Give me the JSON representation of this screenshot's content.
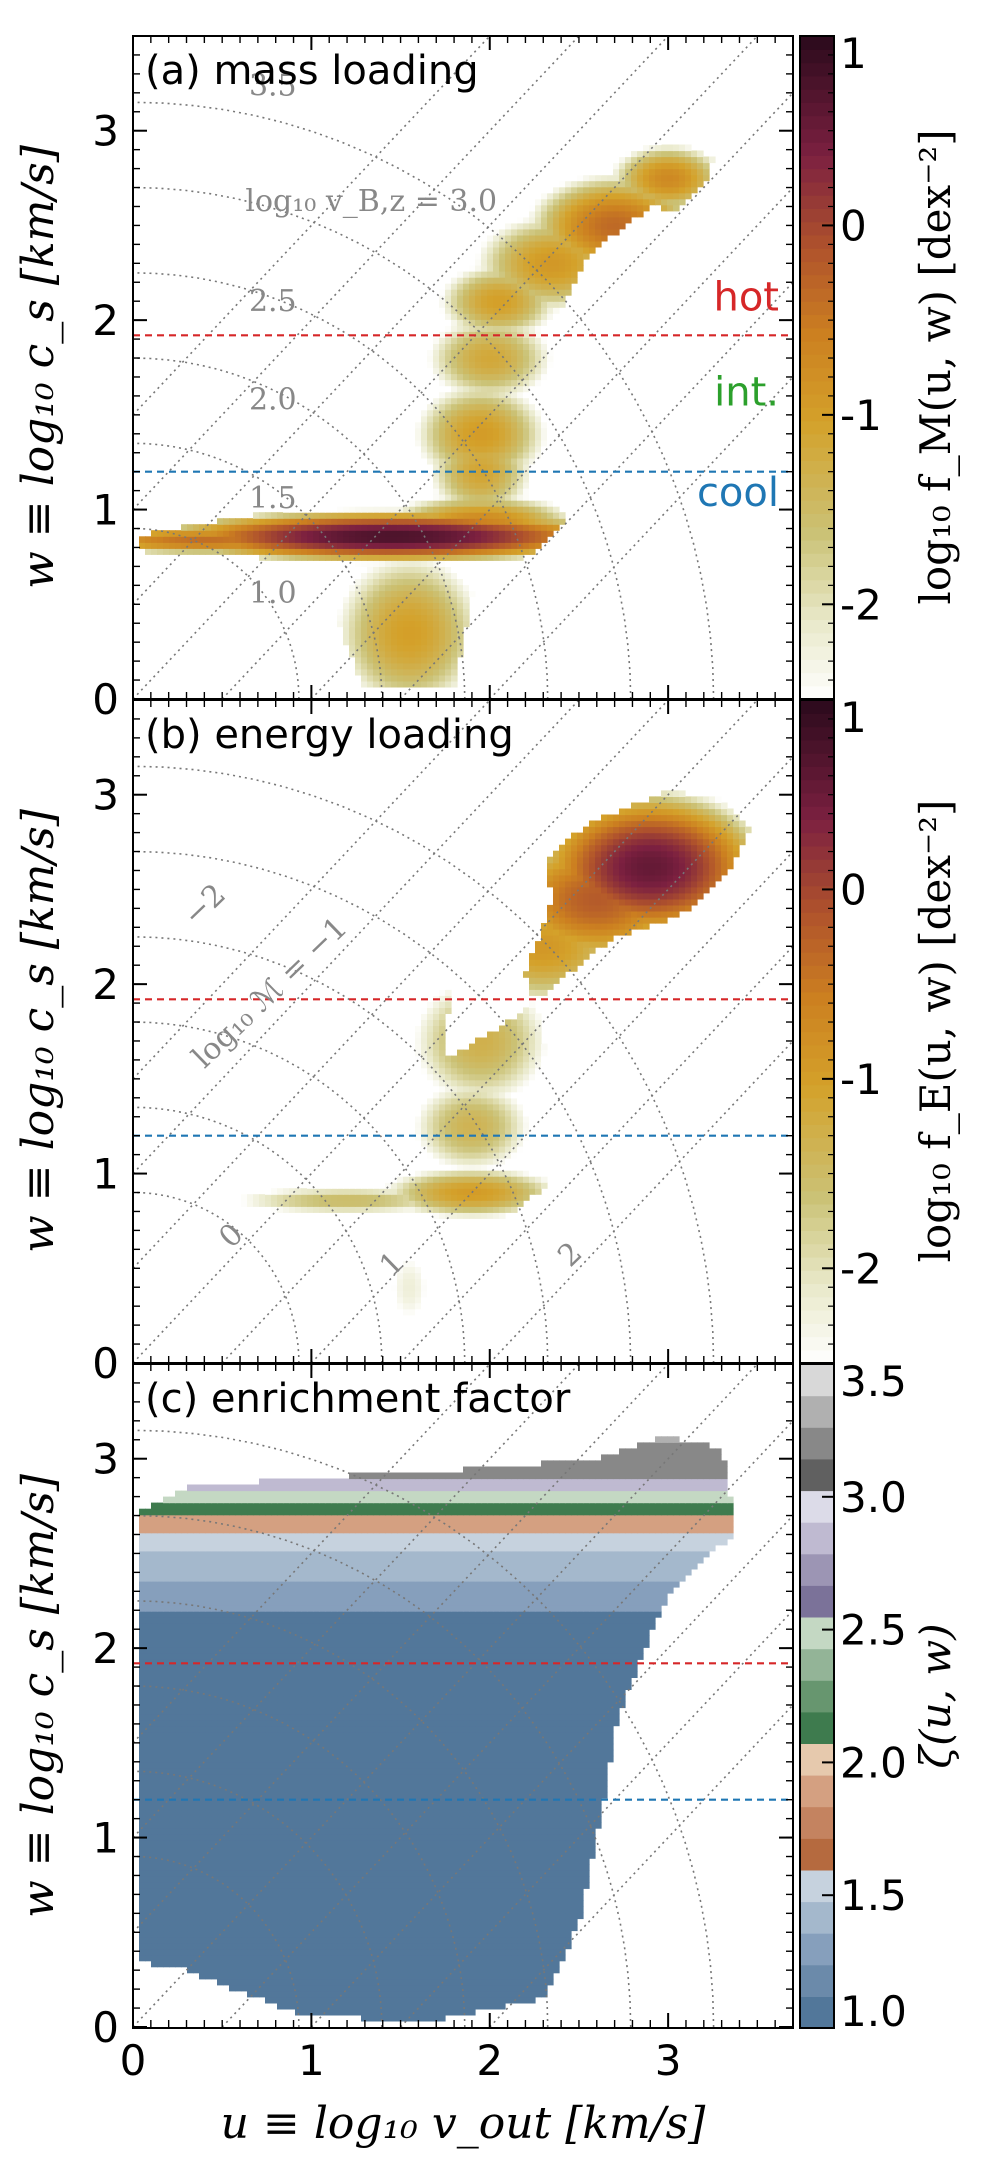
{
  "chart_data": [
    {
      "type": "heatmap",
      "panel_label": "(a) mass loading",
      "xlabel": "u ≡ log₁₀ v_out [km/s]",
      "ylabel": "w ≡ log₁₀ c_s [km/s]",
      "xlim": [
        0,
        3.7
      ],
      "ylim": [
        0,
        3.5
      ],
      "xticks": [
        "0",
        "1",
        "2",
        "3"
      ],
      "yticks": [
        "0",
        "1",
        "2",
        "3"
      ],
      "colorbar_label": "log₁₀ f_M(u, w) [dex⁻²]",
      "colorbar_range": [
        -2.5,
        1
      ],
      "colorbar_ticks": [
        "1",
        "0",
        "-1",
        "-2"
      ],
      "hlines": [
        {
          "name": "hot",
          "value": 1.92,
          "color": "#d62728"
        },
        {
          "name": "cool",
          "value": 1.2,
          "color": "#1f77b4"
        }
      ],
      "region_labels": [
        {
          "text": "hot",
          "color": "#d62728",
          "w": 2.05
        },
        {
          "text": "int.",
          "color": "#2ca02c",
          "w": 1.55
        },
        {
          "text": "cool",
          "color": "#1f77b4",
          "w": 1.02
        }
      ],
      "contour_labels": [
        "3.5",
        "log₁₀ v_B,z = 3.0",
        "2.5",
        "2.0",
        "1.5",
        "1.0"
      ],
      "contour_levels": [
        1.0,
        1.5,
        2.0,
        2.5,
        3.0,
        3.5
      ],
      "blobs": [
        {
          "u": 1.45,
          "w": 0.86,
          "su": 0.6,
          "sw": 0.06,
          "v": 0.75
        },
        {
          "u": 0.4,
          "w": 0.84,
          "su": 0.45,
          "sw": 0.04,
          "v": -0.4
        },
        {
          "u": 1.95,
          "w": 0.92,
          "su": 0.3,
          "sw": 0.09,
          "v": -0.6
        },
        {
          "u": 1.55,
          "w": 0.35,
          "su": 0.25,
          "sw": 0.25,
          "v": -1.0
        },
        {
          "u": 1.95,
          "w": 1.2,
          "su": 0.18,
          "sw": 0.15,
          "v": -1.1
        },
        {
          "u": 1.95,
          "w": 1.4,
          "su": 0.22,
          "sw": 0.16,
          "v": -0.95
        },
        {
          "u": 2.0,
          "w": 1.8,
          "su": 0.22,
          "sw": 0.14,
          "v": -1.15
        },
        {
          "u": 2.05,
          "w": 2.1,
          "su": 0.2,
          "sw": 0.12,
          "v": -1.0
        },
        {
          "u": 2.35,
          "w": 2.3,
          "su": 0.25,
          "sw": 0.15,
          "v": -0.9
        },
        {
          "u": 2.7,
          "w": 2.5,
          "su": 0.25,
          "sw": 0.14,
          "v": -0.35
        },
        {
          "u": 3.0,
          "w": 2.75,
          "su": 0.18,
          "sw": 0.1,
          "v": -0.7
        }
      ],
      "hull": [
        [
          0.55,
          0.95
        ],
        [
          0.1,
          0.88
        ],
        [
          0.02,
          0.84
        ],
        [
          0.1,
          0.76
        ],
        [
          0.7,
          0.75
        ],
        [
          1.05,
          0.62
        ],
        [
          1.3,
          0.05
        ],
        [
          1.8,
          0.05
        ],
        [
          1.9,
          0.55
        ],
        [
          2.25,
          0.78
        ],
        [
          2.42,
          0.92
        ],
        [
          2.38,
          1.1
        ],
        [
          2.35,
          1.95
        ],
        [
          2.55,
          2.35
        ],
        [
          2.9,
          2.6
        ],
        [
          3.05,
          2.58
        ],
        [
          3.2,
          2.72
        ],
        [
          3.25,
          2.85
        ],
        [
          3.1,
          2.92
        ],
        [
          2.9,
          2.95
        ],
        [
          2.55,
          2.88
        ],
        [
          2.2,
          2.8
        ],
        [
          1.95,
          2.62
        ],
        [
          1.7,
          2.2
        ],
        [
          1.5,
          1.6
        ],
        [
          1.3,
          1.25
        ],
        [
          1.05,
          1.12
        ],
        [
          0.85,
          1.0
        ]
      ]
    },
    {
      "type": "heatmap",
      "panel_label": "(b) energy loading",
      "xlabel": "u ≡ log₁₀ v_out [km/s]",
      "ylabel": "w ≡ log₁₀ c_s [km/s]",
      "xlim": [
        0,
        3.7
      ],
      "ylim": [
        0,
        3.5
      ],
      "xticks": [
        "0",
        "1",
        "2",
        "3"
      ],
      "yticks": [
        "0",
        "1",
        "2",
        "3"
      ],
      "colorbar_label": "log₁₀ f_E(u, w) [dex⁻²]",
      "colorbar_range": [
        -2.5,
        1
      ],
      "colorbar_ticks": [
        "1",
        "0",
        "-1",
        "-2"
      ],
      "hlines": [
        {
          "name": "hot",
          "value": 1.92,
          "color": "#d62728"
        },
        {
          "name": "cool",
          "value": 1.2,
          "color": "#1f77b4"
        }
      ],
      "mach_labels": [
        "−2",
        "log₁₀ ℳ = −1",
        "0",
        "1",
        "2"
      ],
      "mach_levels": [
        -2,
        -1,
        0,
        1,
        2
      ],
      "blobs": [
        {
          "u": 2.9,
          "w": 2.62,
          "su": 0.3,
          "sw": 0.18,
          "v": 0.55
        },
        {
          "u": 2.6,
          "w": 2.45,
          "su": 0.3,
          "sw": 0.18,
          "v": -0.2
        },
        {
          "u": 2.3,
          "w": 2.2,
          "su": 0.3,
          "sw": 0.18,
          "v": -0.9
        },
        {
          "u": 1.95,
          "w": 1.7,
          "su": 0.25,
          "sw": 0.22,
          "v": -1.3
        },
        {
          "u": 1.9,
          "w": 1.25,
          "su": 0.22,
          "sw": 0.16,
          "v": -1.35
        },
        {
          "u": 1.9,
          "w": 0.9,
          "su": 0.3,
          "sw": 0.08,
          "v": -0.95
        },
        {
          "u": 1.2,
          "w": 0.86,
          "su": 0.45,
          "sw": 0.05,
          "v": -1.5
        },
        {
          "u": 1.55,
          "w": 0.4,
          "su": 0.12,
          "sw": 0.2,
          "v": -2.2
        }
      ],
      "hull": [
        [
          1.05,
          0.95
        ],
        [
          0.55,
          0.88
        ],
        [
          0.5,
          0.84
        ],
        [
          0.6,
          0.76
        ],
        [
          1.4,
          0.75
        ],
        [
          1.48,
          0.1
        ],
        [
          1.68,
          0.1
        ],
        [
          1.72,
          0.6
        ],
        [
          2.1,
          0.78
        ],
        [
          2.3,
          0.92
        ],
        [
          2.35,
          1.1
        ],
        [
          2.3,
          1.75
        ],
        [
          2.2,
          2.05
        ],
        [
          2.35,
          2.45
        ],
        [
          2.3,
          2.65
        ],
        [
          2.55,
          2.85
        ],
        [
          3.0,
          3.02
        ],
        [
          3.3,
          2.98
        ],
        [
          3.45,
          2.82
        ],
        [
          3.35,
          2.6
        ],
        [
          3.05,
          2.35
        ],
        [
          2.7,
          2.25
        ],
        [
          2.5,
          2.1
        ],
        [
          2.1,
          1.8
        ],
        [
          1.75,
          1.6
        ],
        [
          1.8,
          2.4
        ],
        [
          1.9,
          2.65
        ],
        [
          1.7,
          2.55
        ],
        [
          1.45,
          2.0
        ],
        [
          1.35,
          1.5
        ],
        [
          1.2,
          1.15
        ]
      ]
    },
    {
      "type": "heatmap",
      "panel_label": "(c) enrichment factor",
      "xlabel": "u ≡ log₁₀ v_out [km/s]",
      "ylabel": "w ≡ log₁₀ c_s [km/s]",
      "xlim": [
        0,
        3.7
      ],
      "ylim": [
        0,
        3.5
      ],
      "xticks": [
        "0",
        "1",
        "2",
        "3"
      ],
      "yticks": [
        "0",
        "1",
        "2",
        "3"
      ],
      "colorbar_label": "ζ(u, w)",
      "colorbar_range": [
        1.0,
        3.5
      ],
      "colorbar_ticks": [
        "3.5",
        "3.0",
        "2.5",
        "2.0",
        "1.5",
        "1.0"
      ],
      "hlines": [
        {
          "name": "hot",
          "value": 1.92,
          "color": "#d62728"
        },
        {
          "name": "cool",
          "value": 1.2,
          "color": "#1f77b4"
        }
      ],
      "bands": [
        {
          "w_below": 2.2,
          "zeta": 1.05
        },
        {
          "w_below": 2.35,
          "zeta": 1.25
        },
        {
          "w_below": 2.5,
          "zeta": 1.4
        },
        {
          "w_below": 2.62,
          "zeta": 1.55
        },
        {
          "w_below": 2.7,
          "zeta": 1.85
        },
        {
          "w_below": 2.76,
          "zeta": 2.15
        },
        {
          "w_below": 2.82,
          "zeta": 2.45
        },
        {
          "w_below": 2.9,
          "zeta": 2.8
        },
        {
          "w_below": 3.1,
          "zeta": 3.25
        }
      ],
      "hull": [
        [
          0.02,
          0.35
        ],
        [
          0.02,
          2.72
        ],
        [
          0.3,
          2.85
        ],
        [
          1.0,
          2.9
        ],
        [
          2.0,
          2.95
        ],
        [
          2.6,
          3.0
        ],
        [
          3.0,
          3.12
        ],
        [
          3.3,
          3.05
        ],
        [
          3.38,
          2.6
        ],
        [
          3.25,
          2.52
        ],
        [
          2.98,
          2.25
        ],
        [
          2.72,
          1.65
        ],
        [
          2.6,
          1.0
        ],
        [
          2.5,
          0.55
        ],
        [
          2.3,
          0.15
        ],
        [
          1.6,
          0.02
        ],
        [
          0.9,
          0.08
        ],
        [
          0.3,
          0.3
        ]
      ]
    }
  ]
}
